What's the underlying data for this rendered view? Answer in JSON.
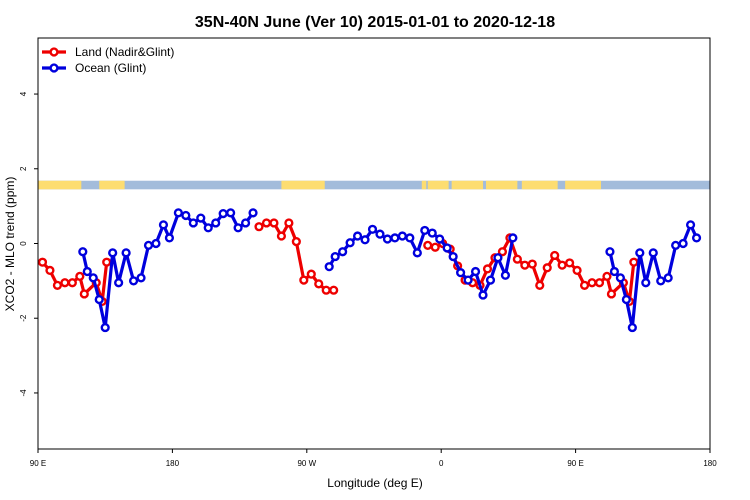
{
  "chart_data": {
    "type": "line",
    "title": "35N-40N June (Ver 10)   2015-01-01 to 2020-12-18",
    "xlabel": "Longitude (deg E)",
    "ylabel": "XCO2 - MLO trend (ppm)",
    "xlim": [
      90,
      540
    ],
    "ylim": [
      -5.5,
      5.5
    ],
    "x_ticks": [
      {
        "value": 90,
        "label": "90 E"
      },
      {
        "value": 180,
        "label": "180"
      },
      {
        "value": 270,
        "label": "90 W"
      },
      {
        "value": 360,
        "label": "0"
      },
      {
        "value": 450,
        "label": "90 E"
      },
      {
        "value": 540,
        "label": "180"
      }
    ],
    "y_ticks": [
      {
        "value": 4,
        "label": "4"
      },
      {
        "value": 2,
        "label": "2"
      },
      {
        "value": 0,
        "label": "0"
      },
      {
        "value": -2,
        "label": "-2"
      },
      {
        "value": -4,
        "label": "-4"
      }
    ],
    "legend_position": "top-left",
    "grid": false,
    "land_mask_band": {
      "y_range": [
        1.45,
        1.68
      ],
      "ocean_color": "#a3bcdb",
      "land_color": "#fddd71",
      "land_x_ranges": [
        [
          90,
          119
        ],
        [
          131,
          148
        ],
        [
          253,
          282
        ],
        [
          347,
          350
        ],
        [
          351,
          365
        ],
        [
          367,
          388
        ],
        [
          390,
          411
        ],
        [
          414,
          438
        ],
        [
          443,
          467
        ]
      ]
    },
    "series": [
      {
        "name": "Land (Nadir&Glint)",
        "color": "#ee0000",
        "segments": [
          [
            [
              93,
              -0.5
            ],
            [
              98,
              -0.72
            ],
            [
              103,
              -1.12
            ],
            [
              108,
              -1.05
            ],
            [
              113,
              -1.05
            ],
            [
              118,
              -0.88
            ],
            [
              121,
              -1.35
            ],
            [
              129,
              -1.05
            ],
            [
              133,
              -1.55
            ],
            [
              136,
              -0.5
            ]
          ],
          [
            [
              238,
              0.45
            ],
            [
              243,
              0.55
            ],
            [
              248,
              0.55
            ],
            [
              253,
              0.2
            ],
            [
              258,
              0.55
            ],
            [
              263,
              0.05
            ],
            [
              268,
              -0.98
            ],
            [
              273,
              -0.82
            ],
            [
              278,
              -1.08
            ],
            [
              283,
              -1.25
            ],
            [
              288,
              -1.25
            ]
          ],
          [
            [
              351,
              -0.05
            ],
            [
              356,
              -0.1
            ],
            [
              361,
              0.0
            ],
            [
              366,
              -0.15
            ],
            [
              371,
              -0.6
            ],
            [
              376,
              -0.98
            ],
            [
              381,
              -1.05
            ],
            [
              386,
              -1.12
            ],
            [
              391,
              -0.68
            ],
            [
              396,
              -0.38
            ],
            [
              401,
              -0.22
            ],
            [
              406,
              0.15
            ],
            [
              411,
              -0.42
            ],
            [
              416,
              -0.58
            ],
            [
              421,
              -0.55
            ],
            [
              426,
              -1.12
            ],
            [
              431,
              -0.65
            ],
            [
              436,
              -0.32
            ],
            [
              441,
              -0.58
            ],
            [
              446,
              -0.52
            ],
            [
              451,
              -0.72
            ],
            [
              456,
              -1.12
            ],
            [
              461,
              -1.05
            ],
            [
              466,
              -1.05
            ],
            [
              471,
              -0.88
            ],
            [
              474,
              -1.35
            ],
            [
              482,
              -1.05
            ],
            [
              486,
              -1.55
            ],
            [
              489,
              -0.5
            ]
          ]
        ]
      },
      {
        "name": "Ocean (Glint)",
        "color": "#0000dd",
        "segments": [
          [
            [
              120,
              -0.22
            ],
            [
              123,
              -0.75
            ],
            [
              127,
              -0.92
            ],
            [
              131,
              -1.5
            ],
            [
              135,
              -2.25
            ],
            [
              140,
              -0.25
            ],
            [
              144,
              -1.05
            ],
            [
              149,
              -0.25
            ],
            [
              154,
              -1.0
            ],
            [
              159,
              -0.92
            ],
            [
              164,
              -0.05
            ],
            [
              169,
              0.0
            ],
            [
              174,
              0.5
            ],
            [
              178,
              0.15
            ],
            [
              184,
              0.82
            ],
            [
              189,
              0.75
            ],
            [
              194,
              0.55
            ],
            [
              199,
              0.68
            ],
            [
              204,
              0.42
            ],
            [
              209,
              0.55
            ],
            [
              214,
              0.8
            ],
            [
              219,
              0.82
            ],
            [
              224,
              0.42
            ],
            [
              229,
              0.55
            ],
            [
              234,
              0.82
            ]
          ],
          [
            [
              285,
              -0.62
            ],
            [
              289,
              -0.35
            ],
            [
              294,
              -0.22
            ],
            [
              299,
              0.02
            ],
            [
              304,
              0.2
            ],
            [
              309,
              0.1
            ],
            [
              314,
              0.38
            ],
            [
              319,
              0.25
            ],
            [
              324,
              0.12
            ],
            [
              329,
              0.15
            ],
            [
              334,
              0.2
            ],
            [
              339,
              0.15
            ],
            [
              344,
              -0.25
            ],
            [
              349,
              0.35
            ],
            [
              354,
              0.28
            ],
            [
              359,
              0.12
            ],
            [
              364,
              -0.12
            ],
            [
              368,
              -0.35
            ],
            [
              373,
              -0.78
            ],
            [
              378,
              -0.98
            ],
            [
              383,
              -0.75
            ],
            [
              388,
              -1.38
            ],
            [
              393,
              -0.98
            ],
            [
              398,
              -0.38
            ],
            [
              403,
              -0.85
            ],
            [
              408,
              0.15
            ]
          ],
          [
            [
              473,
              -0.22
            ],
            [
              476,
              -0.75
            ],
            [
              480,
              -0.92
            ],
            [
              484,
              -1.5
            ],
            [
              488,
              -2.25
            ],
            [
              493,
              -0.25
            ],
            [
              497,
              -1.05
            ],
            [
              502,
              -0.25
            ],
            [
              507,
              -1.0
            ],
            [
              512,
              -0.92
            ],
            [
              517,
              -0.05
            ],
            [
              522,
              0.0
            ],
            [
              527,
              0.5
            ],
            [
              531,
              0.15
            ]
          ]
        ]
      }
    ]
  }
}
